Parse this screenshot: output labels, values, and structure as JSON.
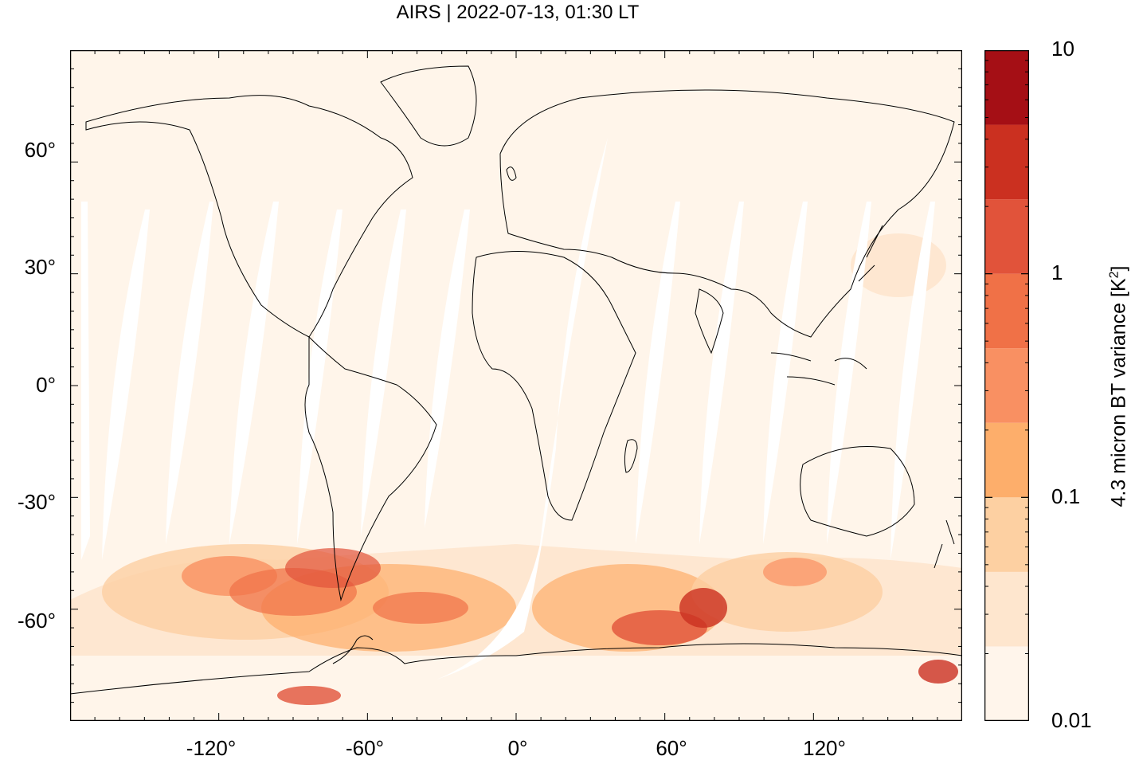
{
  "title": "AIRS | 2022-07-13, 01:30 LT",
  "map": {
    "lon_range": [
      -180,
      180
    ],
    "lat_range": [
      -90,
      90
    ],
    "ocean_color": "#fff5ea",
    "gap_color": "#ffffff",
    "coastline_color": "#000000",
    "y_ticks": [
      {
        "value": 60,
        "label": "60°"
      },
      {
        "value": 30,
        "label": "30°"
      },
      {
        "value": 0,
        "label": "0°"
      },
      {
        "value": -30,
        "label": "-30°"
      },
      {
        "value": -60,
        "label": "-60°"
      }
    ],
    "x_ticks": [
      {
        "value": -120,
        "label": "-120°"
      },
      {
        "value": -60,
        "label": "-60°"
      },
      {
        "value": 0,
        "label": "0°"
      },
      {
        "value": 60,
        "label": "60°"
      },
      {
        "value": 120,
        "label": "120°"
      }
    ]
  },
  "colorbar": {
    "title": "4.3 micron BT variance [K",
    "title_sup": "2",
    "title_end": "]",
    "scale": "log",
    "range": [
      0.01,
      10
    ],
    "tick_labels": [
      {
        "value": 10,
        "label": "10"
      },
      {
        "value": 1,
        "label": "1"
      },
      {
        "value": 0.1,
        "label": "0.1"
      },
      {
        "value": 0.01,
        "label": "0.01"
      }
    ],
    "colors": [
      "#fff5eb",
      "#fee6ce",
      "#fdd0a2",
      "#fdae6b",
      "#f99062",
      "#f07147",
      "#e1533a",
      "#cb3020",
      "#a50f15"
    ]
  }
}
